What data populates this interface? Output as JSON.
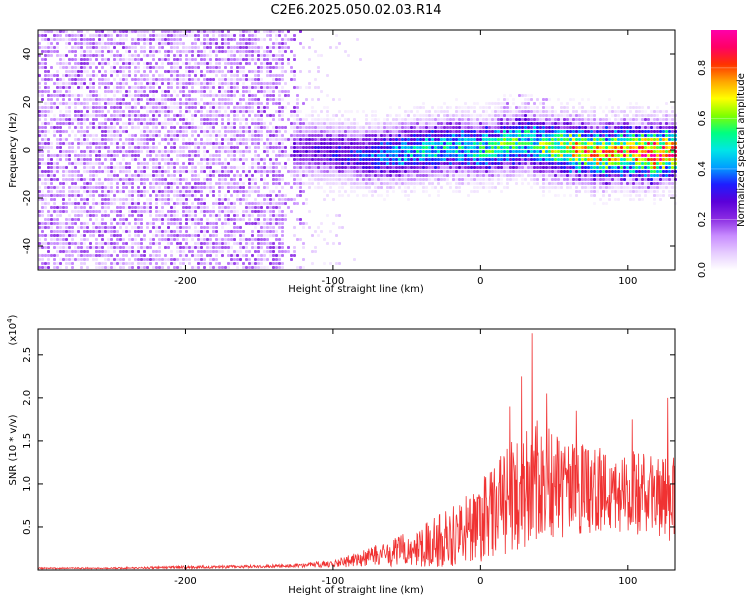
{
  "title": "C2E6.2025.050.02.03.R14",
  "chart_data": [
    {
      "type": "heatmap",
      "xlabel": "Height of straight line (km)",
      "ylabel": "Frequency (Hz)",
      "xlim": [
        -300,
        132
      ],
      "ylim": [
        -50,
        50
      ],
      "xticks": [
        -200,
        -100,
        0,
        100
      ],
      "xtick_labels": [
        "-200",
        "-100",
        "0",
        "100"
      ],
      "yticks": [
        -40,
        -20,
        0,
        20,
        40
      ],
      "ytick_labels": [
        "-40",
        "-20",
        "0",
        "20",
        "40"
      ],
      "colorbar": {
        "label": "Normalized spectral amplitude",
        "range": [
          0,
          0.95
        ],
        "ticks": [
          0,
          0.2,
          0.4,
          0.6,
          0.8
        ],
        "tick_labels": [
          "0.0",
          "0.2",
          "0.4",
          "0.6",
          "0.8"
        ],
        "colormap": [
          "#ffffff",
          "#e6ccff",
          "#c88cff",
          "#8a2be2",
          "#5a00d9",
          "#1e1eff",
          "#00a0ff",
          "#00e6e6",
          "#00ff80",
          "#7fff00",
          "#ffff00",
          "#ffa500",
          "#ff3200",
          "#ff0066",
          "#ff00aa"
        ]
      },
      "noise_region_x": [
        -300,
        -120
      ],
      "signal_band": [
        {
          "x": -125,
          "freq": 1,
          "amp": 0.25
        },
        {
          "x": -100,
          "freq": 0,
          "amp": 0.3
        },
        {
          "x": -80,
          "freq": -2,
          "amp": 0.35
        },
        {
          "x": -60,
          "freq": -1,
          "amp": 0.45
        },
        {
          "x": -40,
          "freq": 1,
          "amp": 0.5
        },
        {
          "x": -20,
          "freq": 2,
          "amp": 0.5
        },
        {
          "x": 0,
          "freq": 1,
          "amp": 0.55
        },
        {
          "x": 20,
          "freq": 3,
          "amp": 0.6
        },
        {
          "x": 30,
          "freq": 5,
          "amp": 0.55
        },
        {
          "x": 40,
          "freq": 2,
          "amp": 0.6
        },
        {
          "x": 60,
          "freq": 1,
          "amp": 0.75
        },
        {
          "x": 80,
          "freq": -1,
          "amp": 0.8
        },
        {
          "x": 100,
          "freq": 0,
          "amp": 0.8
        },
        {
          "x": 115,
          "freq": -1,
          "amp": 0.95
        },
        {
          "x": 130,
          "freq": 0,
          "amp": 0.85
        }
      ]
    },
    {
      "type": "line",
      "xlabel": "Height of straight line (km)",
      "ylabel": "SNR (10 * v/v)",
      "y_multiplier": "(x10",
      "y_multiplier_exp": "4",
      "y_multiplier_close": ")",
      "xlim": [
        -300,
        132
      ],
      "ylim": [
        0,
        2.8
      ],
      "xticks": [
        -200,
        -100,
        0,
        100
      ],
      "xtick_labels": [
        "-200",
        "-100",
        "0",
        "100"
      ],
      "yticks": [
        0.5,
        1.0,
        1.5,
        2.0,
        2.5
      ],
      "ytick_labels": [
        "0.5",
        "1.0",
        "1.5",
        "2.0",
        "2.5"
      ],
      "color": "#f03232",
      "envelope": {
        "x": [
          -300,
          -250,
          -200,
          -150,
          -120,
          -100,
          -80,
          -60,
          -40,
          -20,
          0,
          20,
          30,
          40,
          60,
          80,
          100,
          120,
          130
        ],
        "mean": [
          0.02,
          0.02,
          0.03,
          0.04,
          0.05,
          0.07,
          0.12,
          0.18,
          0.25,
          0.35,
          0.5,
          0.75,
          0.9,
          0.95,
          0.85,
          0.85,
          0.85,
          0.8,
          0.8
        ],
        "amp": [
          0.01,
          0.01,
          0.02,
          0.02,
          0.03,
          0.06,
          0.12,
          0.2,
          0.3,
          0.45,
          0.6,
          0.8,
          1.0,
          0.9,
          0.7,
          0.65,
          0.6,
          0.6,
          0.7
        ]
      },
      "peaks": [
        {
          "x": 35,
          "y": 2.75
        },
        {
          "x": 28,
          "y": 2.25
        },
        {
          "x": 20,
          "y": 1.9
        },
        {
          "x": 45,
          "y": 2.05
        },
        {
          "x": 65,
          "y": 1.85
        },
        {
          "x": 103,
          "y": 1.75
        },
        {
          "x": 127,
          "y": 2.0
        }
      ]
    }
  ]
}
